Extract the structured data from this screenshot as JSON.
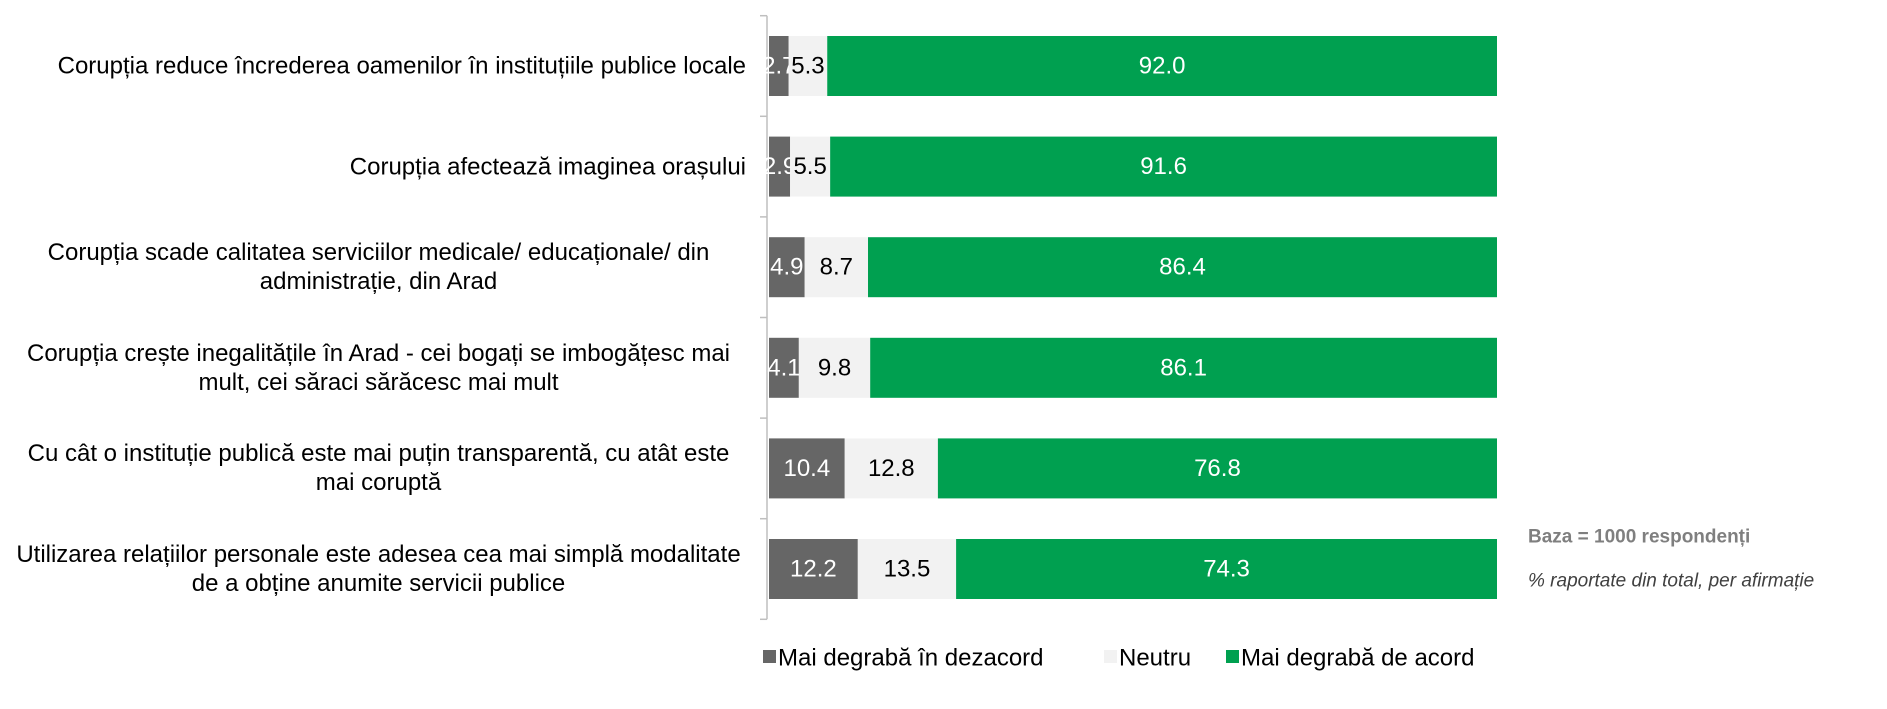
{
  "chart_data": {
    "type": "stacked-bar-horizontal",
    "categories": [
      "Corupția reduce încrederea oamenilor în instituțiile publice locale",
      "Corupția afectează imaginea orașului",
      "Corupția scade calitatea serviciilor medicale/ educaționale/ din administrație, din Arad",
      "Corupția crește inegalitățile în Arad - cei bogați se imbogățesc mai mult, cei săraci sărăcesc mai mult",
      "Cu cât o instituție publică este mai puțin transparentă, cu atât este mai coruptă",
      "Utilizarea relațiilor personale este adesea cea mai simplă modalitate de a obține anumite servicii publice"
    ],
    "series": [
      {
        "name": "Mai degrabă în dezacord",
        "color": "#666666",
        "label_color": "#ffffff",
        "values": [
          2.7,
          2.9,
          4.9,
          4.1,
          10.4,
          12.2
        ]
      },
      {
        "name": "Neutru",
        "color": "#f2f2f2",
        "label_color": "#000000",
        "values": [
          5.3,
          5.5,
          8.7,
          9.8,
          12.8,
          13.5
        ]
      },
      {
        "name": "Mai degrabă de acord",
        "color": "#00a050",
        "label_color": "#ffffff",
        "values": [
          92.0,
          91.6,
          86.4,
          86.1,
          76.8,
          74.3
        ],
        "value_labels": [
          "92.0",
          "91.6",
          "86.4",
          "86.1",
          "76.8",
          "74.3"
        ]
      }
    ],
    "xlim": [
      0,
      100
    ],
    "annotations": [
      "Baza = 1000 respondenți",
      "% raportate din total, per afirmație"
    ]
  }
}
